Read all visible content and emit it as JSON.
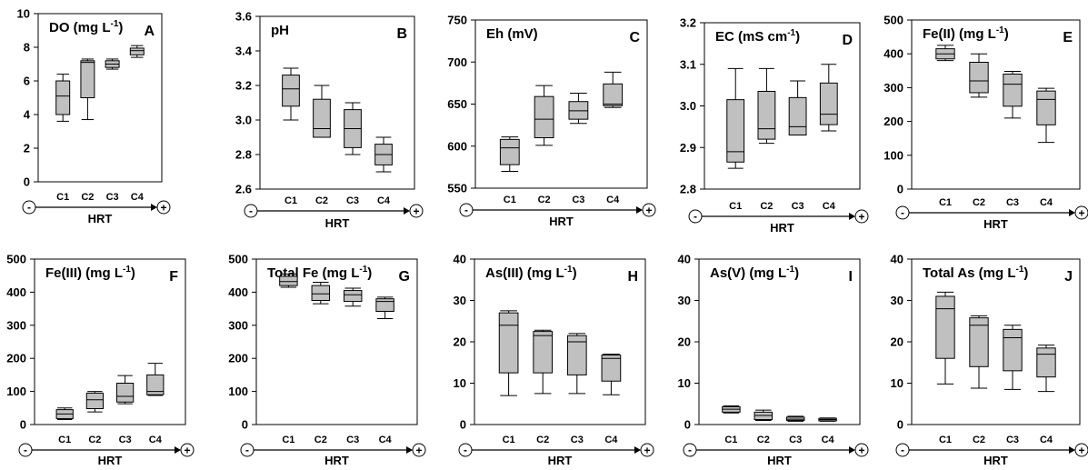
{
  "chart_data": [
    {
      "type": "box",
      "panel": "A",
      "title": "DO (mg L",
      "title_sup": "-1",
      "title_tail": ")",
      "ylim": [
        0,
        10
      ],
      "yticks": [
        "0",
        "2",
        "4",
        "6",
        "8",
        "10"
      ],
      "categories": [
        "C1",
        "C2",
        "C3",
        "C4"
      ],
      "xlabel": "HRT",
      "signs": [
        "-",
        "+"
      ],
      "boxes": [
        {
          "min": 3.6,
          "q1": 4.0,
          "median": 5.1,
          "q3": 6.0,
          "max": 6.4
        },
        {
          "min": 3.7,
          "q1": 5.0,
          "median": 7.1,
          "q3": 7.2,
          "max": 7.3
        },
        {
          "min": 6.7,
          "q1": 6.8,
          "median": 7.0,
          "q3": 7.2,
          "max": 7.3
        },
        {
          "min": 7.4,
          "q1": 7.55,
          "median": 7.8,
          "q3": 7.95,
          "max": 8.1
        }
      ]
    },
    {
      "type": "box",
      "panel": "B",
      "title": "pH",
      "title_sup": "",
      "title_tail": "",
      "ylim": [
        2.6,
        3.6
      ],
      "yticks": [
        "2.6",
        "2.8",
        "3.0",
        "3.2",
        "3.4",
        "3.6"
      ],
      "categories": [
        "C1",
        "C2",
        "C3",
        "C4"
      ],
      "xlabel": "HRT",
      "signs": [
        "-",
        "+"
      ],
      "boxes": [
        {
          "min": 3.0,
          "q1": 3.08,
          "median": 3.18,
          "q3": 3.26,
          "max": 3.3
        },
        {
          "min": 2.9,
          "q1": 2.9,
          "median": 2.95,
          "q3": 3.12,
          "max": 3.2
        },
        {
          "min": 2.8,
          "q1": 2.84,
          "median": 2.95,
          "q3": 3.06,
          "max": 3.1
        },
        {
          "min": 2.7,
          "q1": 2.74,
          "median": 2.8,
          "q3": 2.86,
          "max": 2.9
        }
      ]
    },
    {
      "type": "box",
      "panel": "C",
      "title": "Eh (mV)",
      "title_sup": "",
      "title_tail": "",
      "ylim": [
        550,
        750
      ],
      "yticks": [
        "550",
        "600",
        "650",
        "700",
        "750"
      ],
      "categories": [
        "C1",
        "C2",
        "C3",
        "C4"
      ],
      "xlabel": "HRT",
      "signs": [
        "-",
        "+"
      ],
      "boxes": [
        {
          "min": 570,
          "q1": 578,
          "median": 598,
          "q3": 608,
          "max": 611
        },
        {
          "min": 601,
          "q1": 610,
          "median": 632,
          "q3": 659,
          "max": 672
        },
        {
          "min": 627,
          "q1": 632,
          "median": 642,
          "q3": 653,
          "max": 663
        },
        {
          "min": 646,
          "q1": 648,
          "median": 650,
          "q3": 674,
          "max": 688
        }
      ]
    },
    {
      "type": "box",
      "panel": "D",
      "title": "EC (mS cm",
      "title_sup": "-1",
      "title_tail": ")",
      "ylim": [
        2.8,
        3.2
      ],
      "yticks": [
        "2.8",
        "2.9",
        "3.0",
        "3.1",
        "3.2"
      ],
      "categories": [
        "C1",
        "C2",
        "C3",
        "C4"
      ],
      "xlabel": "HRT",
      "signs": [
        "-",
        "+"
      ],
      "boxes": [
        {
          "min": 2.85,
          "q1": 2.865,
          "median": 2.89,
          "q3": 3.015,
          "max": 3.09
        },
        {
          "min": 2.91,
          "q1": 2.92,
          "median": 2.945,
          "q3": 3.035,
          "max": 3.09
        },
        {
          "min": 2.93,
          "q1": 2.93,
          "median": 2.95,
          "q3": 3.02,
          "max": 3.06
        },
        {
          "min": 2.94,
          "q1": 2.955,
          "median": 2.98,
          "q3": 3.055,
          "max": 3.1
        }
      ]
    },
    {
      "type": "box",
      "panel": "E",
      "title": "Fe(II) (mg L",
      "title_sup": "-1",
      "title_tail": ")",
      "ylim": [
        0,
        500
      ],
      "yticks": [
        "0",
        "100",
        "200",
        "300",
        "400",
        "500"
      ],
      "categories": [
        "C1",
        "C2",
        "C3",
        "C4"
      ],
      "xlabel": "HRT",
      "signs": [
        "-",
        "+"
      ],
      "boxes": [
        {
          "min": 380,
          "q1": 385,
          "median": 400,
          "q3": 415,
          "max": 425
        },
        {
          "min": 272,
          "q1": 285,
          "median": 320,
          "q3": 375,
          "max": 400
        },
        {
          "min": 210,
          "q1": 245,
          "median": 310,
          "q3": 340,
          "max": 348
        },
        {
          "min": 138,
          "q1": 190,
          "median": 265,
          "q3": 290,
          "max": 298
        }
      ]
    },
    {
      "type": "box",
      "panel": "F",
      "title": "Fe(III) (mg L",
      "title_sup": "-1",
      "title_tail": ")",
      "ylim": [
        0,
        500
      ],
      "yticks": [
        "0",
        "100",
        "200",
        "300",
        "400",
        "500"
      ],
      "categories": [
        "C1",
        "C2",
        "C3",
        "C4"
      ],
      "xlabel": "HRT",
      "signs": [
        "-",
        "+"
      ],
      "boxes": [
        {
          "min": 15,
          "q1": 18,
          "median": 32,
          "q3": 45,
          "max": 50
        },
        {
          "min": 38,
          "q1": 48,
          "median": 75,
          "q3": 95,
          "max": 100
        },
        {
          "min": 63,
          "q1": 68,
          "median": 85,
          "q3": 125,
          "max": 148
        },
        {
          "min": 88,
          "q1": 90,
          "median": 100,
          "q3": 150,
          "max": 185
        }
      ]
    },
    {
      "type": "box",
      "panel": "G",
      "title": "Total Fe (mg L",
      "title_sup": "-1",
      "title_tail": ")",
      "ylim": [
        0,
        500
      ],
      "yticks": [
        "0",
        "100",
        "200",
        "300",
        "400",
        "500"
      ],
      "categories": [
        "C1",
        "C2",
        "C3",
        "C4"
      ],
      "xlabel": "HRT",
      "signs": [
        "-",
        "+"
      ],
      "boxes": [
        {
          "min": 415,
          "q1": 420,
          "median": 432,
          "q3": 448,
          "max": 455
        },
        {
          "min": 365,
          "q1": 375,
          "median": 395,
          "q3": 420,
          "max": 430
        },
        {
          "min": 358,
          "q1": 372,
          "median": 392,
          "q3": 405,
          "max": 412
        },
        {
          "min": 320,
          "q1": 342,
          "median": 372,
          "q3": 380,
          "max": 385
        }
      ]
    },
    {
      "type": "box",
      "panel": "H",
      "title": "As(III) (mg L",
      "title_sup": "-1",
      "title_tail": ")",
      "ylim": [
        0,
        40
      ],
      "yticks": [
        "0",
        "10",
        "20",
        "30",
        "40"
      ],
      "categories": [
        "C1",
        "C2",
        "C3",
        "C4"
      ],
      "xlabel": "HRT",
      "signs": [
        "-",
        "+"
      ],
      "boxes": [
        {
          "min": 7,
          "q1": 12.5,
          "median": 24,
          "q3": 27,
          "max": 27.5
        },
        {
          "min": 7.5,
          "q1": 12.5,
          "median": 21.5,
          "q3": 22.5,
          "max": 22.8
        },
        {
          "min": 7.5,
          "q1": 12,
          "median": 20,
          "q3": 21.5,
          "max": 22
        },
        {
          "min": 7.2,
          "q1": 10.5,
          "median": 16,
          "q3": 16.8,
          "max": 17
        }
      ]
    },
    {
      "type": "box",
      "panel": "I",
      "title": "As(V) (mg L",
      "title_sup": "-1",
      "title_tail": ")",
      "ylim": [
        0,
        40
      ],
      "yticks": [
        "0",
        "10",
        "20",
        "30",
        "40"
      ],
      "categories": [
        "C1",
        "C2",
        "C3",
        "C4"
      ],
      "xlabel": "HRT",
      "signs": [
        "-",
        "+"
      ],
      "boxes": [
        {
          "min": 2.8,
          "q1": 3.0,
          "median": 3.7,
          "q3": 4.3,
          "max": 4.5
        },
        {
          "min": 1.0,
          "q1": 1.2,
          "median": 2.2,
          "q3": 3.0,
          "max": 3.5
        },
        {
          "min": 0.8,
          "q1": 1.0,
          "median": 1.3,
          "q3": 1.8,
          "max": 2.0
        },
        {
          "min": 0.8,
          "q1": 0.9,
          "median": 1.2,
          "q3": 1.5,
          "max": 1.6
        }
      ]
    },
    {
      "type": "box",
      "panel": "J",
      "title": "Total As (mg L",
      "title_sup": "-1",
      "title_tail": ")",
      "ylim": [
        0,
        40
      ],
      "yticks": [
        "0",
        "10",
        "20",
        "30",
        "40"
      ],
      "categories": [
        "C1",
        "C2",
        "C3",
        "C4"
      ],
      "xlabel": "HRT",
      "signs": [
        "-",
        "+"
      ],
      "boxes": [
        {
          "min": 9.8,
          "q1": 16,
          "median": 28,
          "q3": 31,
          "max": 32
        },
        {
          "min": 8.8,
          "q1": 14,
          "median": 24,
          "q3": 25.8,
          "max": 26.3
        },
        {
          "min": 8.5,
          "q1": 13,
          "median": 21,
          "q3": 23,
          "max": 24
        },
        {
          "min": 8.0,
          "q1": 11.5,
          "median": 17,
          "q3": 18.5,
          "max": 19.2
        }
      ]
    }
  ],
  "colors": {
    "box_fill": "#c0c0c0",
    "stroke": "#000000",
    "background": "#ffffff"
  }
}
